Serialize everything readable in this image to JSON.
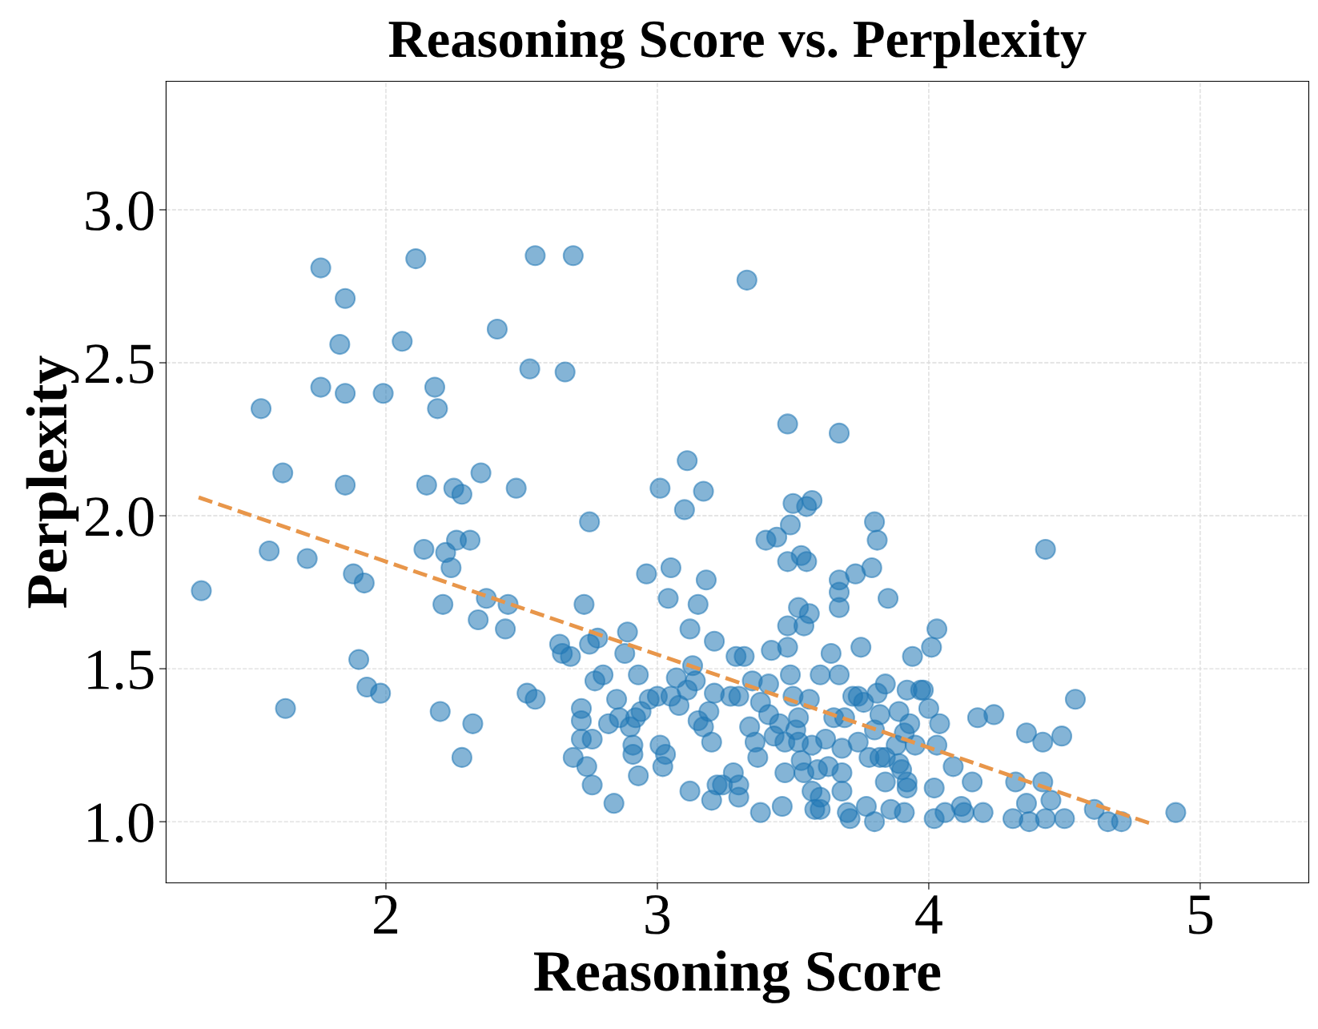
{
  "chart_data": {
    "type": "scatter",
    "title": "Reasoning Score vs. Perplexity",
    "xlabel": "Reasoning Score",
    "ylabel": "Perplexity",
    "xlim": [
      1.19,
      5.4
    ],
    "ylim": [
      0.8,
      3.42
    ],
    "xticks": [
      2,
      3,
      4,
      5
    ],
    "yticks": [
      {
        "value": 1.0,
        "label": "1.0"
      },
      {
        "value": 1.5,
        "label": "1.5"
      },
      {
        "value": 2.0,
        "label": "2.0"
      },
      {
        "value": 2.5,
        "label": "2.5"
      },
      {
        "value": 3.0,
        "label": "3.0"
      }
    ],
    "grid": true,
    "series": [
      {
        "marker": "circle",
        "color": "#1f77b4",
        "x": [
          1.32,
          1.54,
          1.62,
          1.57,
          1.63,
          1.71,
          1.76,
          1.76,
          1.85,
          1.83,
          1.85,
          1.85,
          1.88,
          1.92,
          1.9,
          1.93,
          1.98,
          1.99,
          2.06,
          2.11,
          2.15,
          2.14,
          2.18,
          2.19,
          2.2,
          2.21,
          2.22,
          2.24,
          2.25,
          2.26,
          2.28,
          2.28,
          2.31,
          2.32,
          2.34,
          2.35,
          2.37,
          2.41,
          2.44,
          2.45,
          2.48,
          2.52,
          2.53,
          2.55,
          2.55,
          2.64,
          2.65,
          2.66,
          2.68,
          2.69,
          2.69,
          2.72,
          2.72,
          2.72,
          2.73,
          2.74,
          2.76,
          2.75,
          2.75,
          2.76,
          2.77,
          2.78,
          2.8,
          2.82,
          2.84,
          2.85,
          2.86,
          2.88,
          2.89,
          2.9,
          2.91,
          2.91,
          2.93,
          2.92,
          2.93,
          2.94,
          2.96,
          2.97,
          3.0,
          3.01,
          3.01,
          3.02,
          3.03,
          3.04,
          3.05,
          3.05,
          3.07,
          3.08,
          3.1,
          3.11,
          3.11,
          3.12,
          3.12,
          3.13,
          3.14,
          3.15,
          3.15,
          3.17,
          3.18,
          3.17,
          3.19,
          3.2,
          3.2,
          3.21,
          3.21,
          3.22,
          3.24,
          3.27,
          3.28,
          3.29,
          3.3,
          3.3,
          3.3,
          3.32,
          3.33,
          3.34,
          3.35,
          3.36,
          3.37,
          3.38,
          3.38,
          3.4,
          3.41,
          3.41,
          3.42,
          3.43,
          3.44,
          3.45,
          3.46,
          3.47,
          3.47,
          3.48,
          3.48,
          3.48,
          3.49,
          3.48,
          3.49,
          3.5,
          3.5,
          3.51,
          3.52,
          3.52,
          3.52,
          3.53,
          3.53,
          3.54,
          3.54,
          3.55,
          3.55,
          3.56,
          3.56,
          3.57,
          3.57,
          3.57,
          3.58,
          3.59,
          3.6,
          3.6,
          3.6,
          3.62,
          3.63,
          3.64,
          3.65,
          3.67,
          3.67,
          3.67,
          3.67,
          3.67,
          3.68,
          3.68,
          3.68,
          3.69,
          3.7,
          3.71,
          3.72,
          3.73,
          3.74,
          3.74,
          3.75,
          3.76,
          3.77,
          3.78,
          3.79,
          3.8,
          3.8,
          3.8,
          3.81,
          3.81,
          3.82,
          3.82,
          3.84,
          3.84,
          3.84,
          3.85,
          3.86,
          3.88,
          3.89,
          3.89,
          3.9,
          3.91,
          3.91,
          3.92,
          3.92,
          3.92,
          3.93,
          3.94,
          3.95,
          3.97,
          3.98,
          4.0,
          4.01,
          4.02,
          4.02,
          4.03,
          4.03,
          4.04,
          4.06,
          4.09,
          4.12,
          4.13,
          4.16,
          4.2,
          4.18,
          4.24,
          4.31,
          4.32,
          4.36,
          4.36,
          4.37,
          4.42,
          4.43,
          4.42,
          4.43,
          4.45,
          4.49,
          4.5,
          4.54,
          4.61,
          4.66,
          4.71,
          4.91
        ],
        "values": [
          1.755,
          2.35,
          2.14,
          1.885,
          1.37,
          1.86,
          2.81,
          2.42,
          2.71,
          2.56,
          2.4,
          2.1,
          1.81,
          1.78,
          1.53,
          1.44,
          1.42,
          2.4,
          2.57,
          2.84,
          2.1,
          1.89,
          2.42,
          2.35,
          1.36,
          1.71,
          1.88,
          1.83,
          2.09,
          1.92,
          2.07,
          1.21,
          1.92,
          1.32,
          1.66,
          2.14,
          1.73,
          2.61,
          1.63,
          1.71,
          2.09,
          1.42,
          2.48,
          1.4,
          2.85,
          1.58,
          1.55,
          2.47,
          1.54,
          2.85,
          1.21,
          1.37,
          1.33,
          1.27,
          1.71,
          1.18,
          1.12,
          1.58,
          1.98,
          1.27,
          1.46,
          1.6,
          1.48,
          1.32,
          1.06,
          1.4,
          1.34,
          1.55,
          1.62,
          1.31,
          1.25,
          1.22,
          1.48,
          1.34,
          1.15,
          1.36,
          1.81,
          1.4,
          1.41,
          2.09,
          1.25,
          1.18,
          1.22,
          1.73,
          1.83,
          1.41,
          1.47,
          1.38,
          2.02,
          2.18,
          1.43,
          1.1,
          1.63,
          1.51,
          1.46,
          1.71,
          1.33,
          2.08,
          1.79,
          1.31,
          1.36,
          1.07,
          1.26,
          1.42,
          1.59,
          1.12,
          1.12,
          1.41,
          1.16,
          1.54,
          1.12,
          1.08,
          1.41,
          1.54,
          2.77,
          1.31,
          1.46,
          1.26,
          1.21,
          1.03,
          1.39,
          1.92,
          1.35,
          1.45,
          1.56,
          1.28,
          1.93,
          1.32,
          1.05,
          1.16,
          1.26,
          1.85,
          1.57,
          2.3,
          1.48,
          1.64,
          1.97,
          2.04,
          1.41,
          1.3,
          1.7,
          1.34,
          1.26,
          1.2,
          1.87,
          1.64,
          1.16,
          2.03,
          1.85,
          1.4,
          1.68,
          1.1,
          2.05,
          1.25,
          1.04,
          1.17,
          1.08,
          1.04,
          1.48,
          1.27,
          1.18,
          1.55,
          1.34,
          2.27,
          1.79,
          1.7,
          1.75,
          1.48,
          1.24,
          1.16,
          1.1,
          1.34,
          1.03,
          1.01,
          1.41,
          1.81,
          1.26,
          1.41,
          1.57,
          1.39,
          1.05,
          1.21,
          1.83,
          1.0,
          1.3,
          1.98,
          1.42,
          1.92,
          1.21,
          1.35,
          1.21,
          1.13,
          1.45,
          1.73,
          1.04,
          1.25,
          1.36,
          1.19,
          1.17,
          1.03,
          1.29,
          1.43,
          1.11,
          1.13,
          1.32,
          1.54,
          1.25,
          1.43,
          1.43,
          1.37,
          1.57,
          1.01,
          1.11,
          1.63,
          1.25,
          1.32,
          1.03,
          1.18,
          1.05,
          1.03,
          1.13,
          1.03,
          1.34,
          1.35,
          1.01,
          1.13,
          1.29,
          1.06,
          1.0,
          1.13,
          1.89,
          1.26,
          1.01,
          1.07,
          1.28,
          1.01,
          1.4,
          1.04,
          1.0,
          1.0,
          1.03
        ]
      },
      {
        "type": "line",
        "line_style": "dashed",
        "color": "#e8964a",
        "x": [
          1.31,
          4.83
        ],
        "values": [
          2.06,
          0.99
        ]
      }
    ]
  }
}
